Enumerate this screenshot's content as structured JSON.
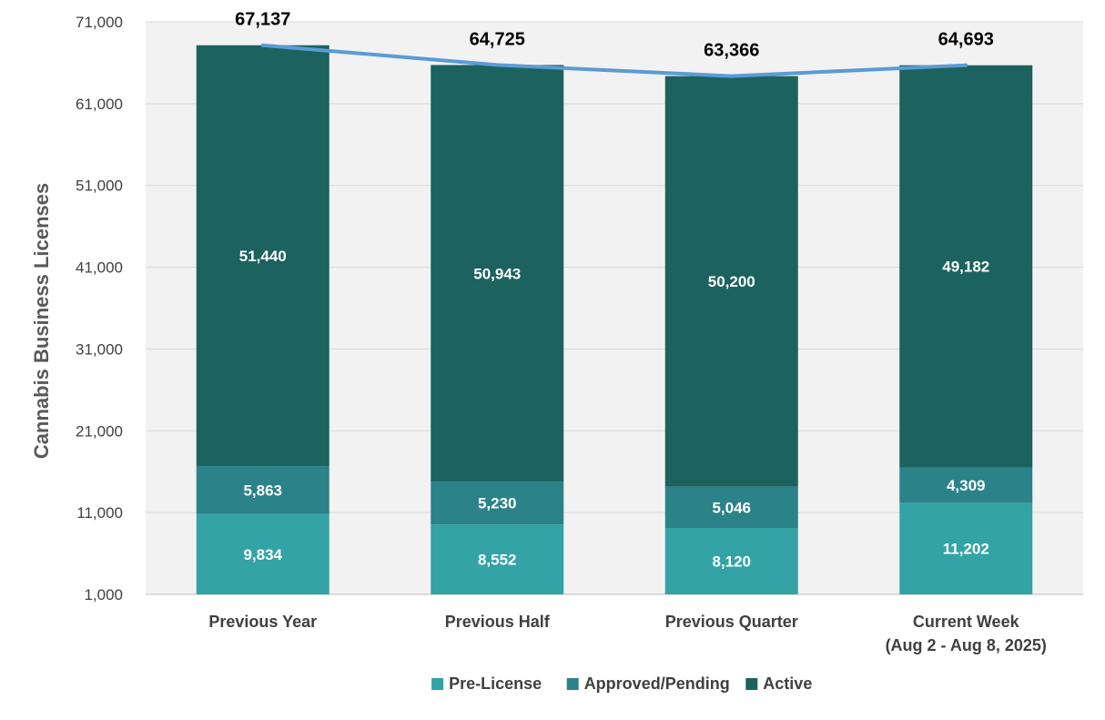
{
  "chart_data": {
    "type": "bar",
    "stacked": true,
    "title": "",
    "xlabel": "",
    "ylabel": "Cannabis  Business Licenses",
    "ylim": [
      1000,
      71000
    ],
    "yticks": [
      "71,000",
      "61,000",
      "51,000",
      "41,000",
      "31,000",
      "21,000",
      "11,000",
      "1,000"
    ],
    "ytick_values": [
      71000,
      61000,
      51000,
      41000,
      31000,
      21000,
      11000,
      1000
    ],
    "grid": true,
    "categories": [
      [
        "Previous Year"
      ],
      [
        "Previous Half"
      ],
      [
        "Previous Quarter"
      ],
      [
        "Current Week",
        "(Aug 2 - Aug 8, 2025)"
      ]
    ],
    "series": [
      {
        "name": "Pre-License",
        "color": "#33a3a6",
        "values": [
          9834,
          8552,
          8120,
          11202
        ],
        "labels": [
          "9,834",
          "8,552",
          "8,120",
          "11,202"
        ]
      },
      {
        "name": "Approved/Pending",
        "color": "#2b8289",
        "values": [
          5863,
          5230,
          5046,
          4309
        ],
        "labels": [
          "5,863",
          "5,230",
          "5,046",
          "4,309"
        ]
      },
      {
        "name": "Active",
        "color": "#1c625f",
        "values": [
          51440,
          50943,
          50200,
          49182
        ],
        "labels": [
          "51,440",
          "50,943",
          "50,200",
          "49,182"
        ]
      }
    ],
    "totals": {
      "color": "#5b9bd5",
      "values": [
        67137,
        64725,
        63366,
        64693
      ],
      "labels": [
        "67,137",
        "64,725",
        "63,366",
        "64,693"
      ]
    },
    "legend_position": "bottom",
    "plot_background": "#f2f2f2",
    "gridline_color": "#d9d9d9"
  }
}
